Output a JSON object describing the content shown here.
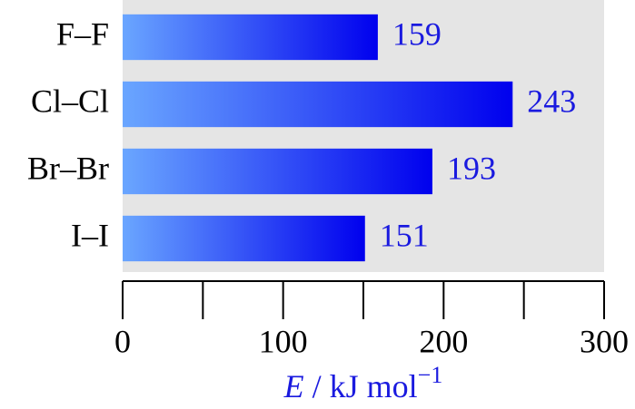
{
  "chart_data": {
    "type": "bar",
    "orientation": "horizontal",
    "categories": [
      "F–F",
      "Cl–Cl",
      "Br–Br",
      "I–I"
    ],
    "values": [
      159,
      243,
      193,
      151
    ],
    "color": "#0000ee",
    "color_light": "#6aa6ff",
    "label_color": "#1a1adf",
    "background": "#e5e5e5",
    "xlim": [
      0,
      300
    ],
    "xticks": [
      0,
      100,
      200,
      300
    ],
    "xminorticks": [
      50,
      150,
      250
    ],
    "xlabel": {
      "symbol": "E",
      "text": " / kJ mol",
      "exponent": "−1"
    }
  }
}
